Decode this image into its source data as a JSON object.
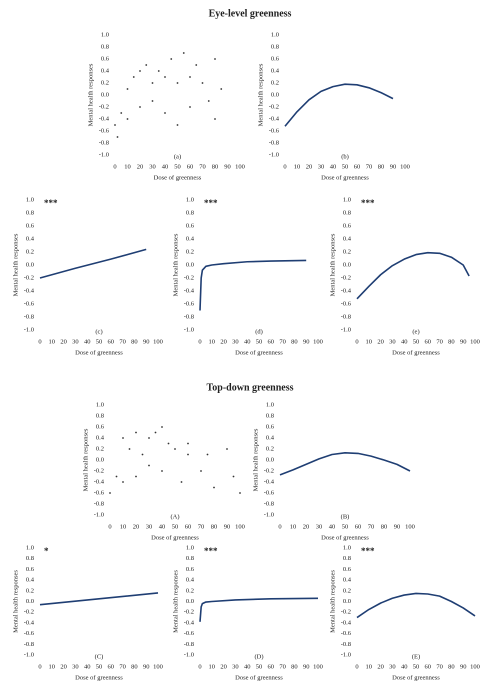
{
  "headings": [
    "Eye-level greenness",
    "Top-down greenness"
  ],
  "chart_data": [
    {
      "type": "scatter",
      "caption": "(a)",
      "significance": null,
      "xlabel": "Dose of greenness",
      "ylabel": "Mental health responses",
      "color": "#333333",
      "x": [
        0,
        2,
        5,
        10,
        10,
        15,
        20,
        20,
        25,
        30,
        30,
        35,
        40,
        40,
        45,
        50,
        50,
        55,
        60,
        60,
        65,
        70,
        75,
        80,
        80,
        85
      ],
      "values": [
        -0.5,
        -0.7,
        -0.3,
        0.1,
        -0.4,
        0.3,
        -0.2,
        0.4,
        0.5,
        0.2,
        -0.1,
        0.4,
        0.3,
        -0.3,
        0.6,
        0.2,
        -0.5,
        0.7,
        0.3,
        -0.2,
        0.5,
        0.2,
        -0.1,
        0.6,
        -0.4,
        0.1
      ],
      "xlim": [
        0,
        100
      ],
      "xticks": [
        0,
        10,
        20,
        30,
        40,
        50,
        60,
        70,
        80,
        90,
        100
      ],
      "ylim": [
        -1,
        1
      ],
      "yticks": [
        {
          "value": -1,
          "label": "-1.0"
        },
        {
          "value": -0.8,
          "label": "-0.8"
        },
        {
          "value": -0.6,
          "label": "-0.6"
        },
        {
          "value": -0.4,
          "label": "-0.4"
        },
        {
          "value": -0.2,
          "label": "-0.2"
        },
        {
          "value": 0,
          "label": "0.0"
        },
        {
          "value": 0.2,
          "label": "0.2"
        },
        {
          "value": 0.4,
          "label": "0.4"
        },
        {
          "value": 0.6,
          "label": "0.6"
        },
        {
          "value": 0.8,
          "label": "0.8"
        },
        {
          "value": 1,
          "label": "1.0"
        }
      ]
    },
    {
      "type": "line",
      "caption": "(b)",
      "significance": null,
      "xlabel": "Dose of greenness",
      "ylabel": "Mental health responses",
      "color": "#1f3e73",
      "x": [
        0,
        10,
        20,
        30,
        40,
        50,
        60,
        70,
        80,
        90
      ],
      "values": [
        -0.52,
        -0.28,
        -0.08,
        0.06,
        0.14,
        0.18,
        0.17,
        0.12,
        0.04,
        -0.06
      ],
      "xlim": [
        0,
        100
      ],
      "xticks": [
        0,
        10,
        20,
        30,
        40,
        50,
        60,
        70,
        80,
        90,
        100
      ],
      "ylim": [
        -1,
        1
      ],
      "yticks": [
        {
          "value": -1,
          "label": "-1.0"
        },
        {
          "value": -0.8,
          "label": "-0.8"
        },
        {
          "value": -0.6,
          "label": "-0.6"
        },
        {
          "value": -0.4,
          "label": "-0.4"
        },
        {
          "value": -0.2,
          "label": "-0.2"
        },
        {
          "value": 0,
          "label": "0.0"
        },
        {
          "value": 0.2,
          "label": "0.2"
        },
        {
          "value": 0.4,
          "label": "0.4"
        },
        {
          "value": 0.6,
          "label": "0.6"
        },
        {
          "value": 0.8,
          "label": "0.8"
        },
        {
          "value": 1,
          "label": "1.0"
        }
      ]
    },
    {
      "type": "line",
      "caption": "(c)",
      "significance": "***",
      "xlabel": "Dose of greenness",
      "ylabel": "Mental health responses",
      "color": "#1f3e73",
      "x": [
        0,
        30,
        60,
        90
      ],
      "values": [
        -0.2,
        -0.05,
        0.09,
        0.24
      ],
      "xlim": [
        0,
        100
      ],
      "xticks": [
        0,
        10,
        20,
        30,
        40,
        50,
        60,
        70,
        80,
        90,
        100
      ],
      "ylim": [
        -1,
        1
      ],
      "yticks": [
        {
          "value": -1,
          "label": "-1.0"
        },
        {
          "value": -0.8,
          "label": "-0.8"
        },
        {
          "value": -0.6,
          "label": "-0.6"
        },
        {
          "value": -0.4,
          "label": "-0.4"
        },
        {
          "value": -0.2,
          "label": "-0.2"
        },
        {
          "value": 0,
          "label": "0.0"
        },
        {
          "value": 0.2,
          "label": "0.2"
        },
        {
          "value": 0.4,
          "label": "0.4"
        },
        {
          "value": 0.6,
          "label": "0.6"
        },
        {
          "value": 0.8,
          "label": "0.8"
        },
        {
          "value": 1,
          "label": "1.0"
        }
      ]
    },
    {
      "type": "line",
      "caption": "(d)",
      "significance": "***",
      "xlabel": "Dose of greenness",
      "ylabel": "Mental health responses",
      "color": "#1f3e73",
      "x": [
        0,
        1,
        2,
        5,
        10,
        20,
        40,
        60,
        90
      ],
      "values": [
        -0.7,
        -0.2,
        -0.08,
        -0.02,
        0.0,
        0.02,
        0.05,
        0.06,
        0.07
      ],
      "xlim": [
        0,
        100
      ],
      "xticks": [
        0,
        10,
        20,
        30,
        40,
        50,
        60,
        70,
        80,
        90,
        100
      ],
      "ylim": [
        -1,
        1
      ],
      "yticks": [
        {
          "value": -1,
          "label": "-1.0"
        },
        {
          "value": -0.8,
          "label": "-0.8"
        },
        {
          "value": -0.6,
          "label": "-0.6"
        },
        {
          "value": -0.4,
          "label": "-0.4"
        },
        {
          "value": -0.2,
          "label": "-0.2"
        },
        {
          "value": 0,
          "label": "0.0"
        },
        {
          "value": 0.2,
          "label": "0.2"
        },
        {
          "value": 0.4,
          "label": "0.4"
        },
        {
          "value": 0.6,
          "label": "0.6"
        },
        {
          "value": 0.8,
          "label": "0.8"
        },
        {
          "value": 1,
          "label": "1.0"
        }
      ]
    },
    {
      "type": "line",
      "caption": "(e)",
      "significance": "***",
      "xlabel": "Dose of greenness",
      "ylabel": "Mental health responses",
      "color": "#1f3e73",
      "x": [
        0,
        10,
        20,
        30,
        40,
        50,
        60,
        70,
        80,
        90,
        95
      ],
      "values": [
        -0.52,
        -0.33,
        -0.15,
        -0.01,
        0.09,
        0.16,
        0.19,
        0.18,
        0.12,
        0.0,
        -0.17
      ],
      "xlim": [
        0,
        100
      ],
      "xticks": [
        0,
        10,
        20,
        30,
        40,
        50,
        60,
        70,
        80,
        90,
        100
      ],
      "ylim": [
        -1,
        1
      ],
      "yticks": [
        {
          "value": -1,
          "label": "-1.0"
        },
        {
          "value": -0.8,
          "label": "-0.8"
        },
        {
          "value": -0.6,
          "label": "-0.6"
        },
        {
          "value": -0.4,
          "label": "-0.4"
        },
        {
          "value": -0.2,
          "label": "-0.2"
        },
        {
          "value": 0,
          "label": "0.0"
        },
        {
          "value": 0.2,
          "label": "0.2"
        },
        {
          "value": 0.4,
          "label": "0.4"
        },
        {
          "value": 0.6,
          "label": "0.6"
        },
        {
          "value": 0.8,
          "label": "0.8"
        },
        {
          "value": 1,
          "label": "1.0"
        }
      ]
    },
    {
      "type": "scatter",
      "caption": "(A)",
      "significance": null,
      "xlabel": "Dose of greenness",
      "ylabel": "Mental health responses",
      "color": "#333333",
      "x": [
        0,
        5,
        10,
        10,
        15,
        20,
        20,
        25,
        30,
        30,
        35,
        40,
        40,
        45,
        50,
        55,
        60,
        60,
        70,
        75,
        80,
        90,
        95,
        100
      ],
      "values": [
        -0.6,
        -0.3,
        0.4,
        -0.4,
        0.2,
        0.5,
        -0.3,
        0.1,
        0.4,
        -0.1,
        0.5,
        0.6,
        -0.2,
        0.3,
        0.2,
        -0.4,
        0.3,
        0.1,
        -0.2,
        0.1,
        -0.5,
        0.2,
        -0.3,
        -0.6
      ],
      "xlim": [
        0,
        100
      ],
      "xticks": [
        0,
        10,
        20,
        30,
        40,
        50,
        60,
        70,
        80,
        90,
        100
      ],
      "ylim": [
        -1,
        1
      ],
      "yticks": [
        {
          "value": -1,
          "label": "-1.0"
        },
        {
          "value": -0.8,
          "label": "-0.8"
        },
        {
          "value": -0.6,
          "label": "-0.6"
        },
        {
          "value": -0.4,
          "label": "-0.4"
        },
        {
          "value": -0.2,
          "label": "-0.2"
        },
        {
          "value": 0,
          "label": "0.0"
        },
        {
          "value": 0.2,
          "label": "0.2"
        },
        {
          "value": 0.4,
          "label": "0.4"
        },
        {
          "value": 0.6,
          "label": "0.6"
        },
        {
          "value": 0.8,
          "label": "0.8"
        },
        {
          "value": 1,
          "label": "1.0"
        }
      ]
    },
    {
      "type": "line",
      "caption": "(B)",
      "significance": null,
      "xlabel": "Dose of greenness",
      "ylabel": "Mental health responses",
      "color": "#1f3e73",
      "x": [
        0,
        10,
        20,
        30,
        40,
        50,
        60,
        70,
        80,
        90,
        100
      ],
      "values": [
        -0.27,
        -0.18,
        -0.08,
        0.02,
        0.1,
        0.13,
        0.12,
        0.07,
        0.0,
        -0.08,
        -0.2
      ],
      "xlim": [
        0,
        100
      ],
      "xticks": [
        0,
        10,
        20,
        30,
        40,
        50,
        60,
        70,
        80,
        90,
        100
      ],
      "ylim": [
        -1,
        1
      ],
      "yticks": [
        {
          "value": -1,
          "label": "-1.0"
        },
        {
          "value": -0.8,
          "label": "-0.8"
        },
        {
          "value": -0.6,
          "label": "-0.6"
        },
        {
          "value": -0.4,
          "label": "-0.4"
        },
        {
          "value": -0.2,
          "label": "-0.2"
        },
        {
          "value": 0,
          "label": "0.0"
        },
        {
          "value": 0.2,
          "label": "0.2"
        },
        {
          "value": 0.4,
          "label": "0.4"
        },
        {
          "value": 0.6,
          "label": "0.6"
        },
        {
          "value": 0.8,
          "label": "0.8"
        },
        {
          "value": 1,
          "label": "1.0"
        }
      ]
    },
    {
      "type": "line",
      "caption": "(C)",
      "significance": "*",
      "xlabel": "Dose of greenness",
      "ylabel": "Mental health responses",
      "color": "#1f3e73",
      "x": [
        0,
        50,
        100
      ],
      "values": [
        -0.06,
        0.05,
        0.16
      ],
      "xlim": [
        0,
        100
      ],
      "xticks": [
        0,
        10,
        20,
        30,
        40,
        50,
        60,
        70,
        80,
        90,
        100
      ],
      "ylim": [
        -1,
        1
      ],
      "yticks": [
        {
          "value": -1,
          "label": "-1.0"
        },
        {
          "value": -0.8,
          "label": "-0.8"
        },
        {
          "value": -0.6,
          "label": "-0.6"
        },
        {
          "value": -0.4,
          "label": "-0.4"
        },
        {
          "value": -0.2,
          "label": "-0.2"
        },
        {
          "value": 0,
          "label": "0.0"
        },
        {
          "value": 0.2,
          "label": "0.2"
        },
        {
          "value": 0.4,
          "label": "0.4"
        },
        {
          "value": 0.6,
          "label": "0.6"
        },
        {
          "value": 0.8,
          "label": "0.8"
        },
        {
          "value": 1,
          "label": "1.0"
        }
      ]
    },
    {
      "type": "line",
      "caption": "(D)",
      "significance": "***",
      "xlabel": "Dose of greenness",
      "ylabel": "Mental health responses",
      "color": "#1f3e73",
      "x": [
        0,
        1,
        2,
        5,
        10,
        30,
        60,
        100
      ],
      "values": [
        -0.38,
        -0.1,
        -0.04,
        -0.01,
        0.0,
        0.03,
        0.05,
        0.06
      ],
      "xlim": [
        0,
        100
      ],
      "xticks": [
        0,
        10,
        20,
        30,
        40,
        50,
        60,
        70,
        80,
        90,
        100
      ],
      "ylim": [
        -1,
        1
      ],
      "yticks": [
        {
          "value": -1,
          "label": "-1.0"
        },
        {
          "value": -0.8,
          "label": "-0.8"
        },
        {
          "value": -0.6,
          "label": "-0.6"
        },
        {
          "value": -0.4,
          "label": "-0.4"
        },
        {
          "value": -0.2,
          "label": "-0.2"
        },
        {
          "value": 0,
          "label": "0.0"
        },
        {
          "value": 0.2,
          "label": "0.2"
        },
        {
          "value": 0.4,
          "label": "0.4"
        },
        {
          "value": 0.6,
          "label": "0.6"
        },
        {
          "value": 0.8,
          "label": "0.8"
        },
        {
          "value": 1,
          "label": "1.0"
        }
      ]
    },
    {
      "type": "line",
      "caption": "(E)",
      "significance": "***",
      "xlabel": "Dose of greenness",
      "ylabel": "Mental health responses",
      "color": "#1f3e73",
      "x": [
        0,
        10,
        20,
        30,
        40,
        50,
        60,
        70,
        80,
        90,
        100
      ],
      "values": [
        -0.3,
        -0.15,
        -0.03,
        0.06,
        0.12,
        0.15,
        0.14,
        0.1,
        0.0,
        -0.12,
        -0.27
      ],
      "xlim": [
        0,
        100
      ],
      "xticks": [
        0,
        10,
        20,
        30,
        40,
        50,
        60,
        70,
        80,
        90,
        100
      ],
      "ylim": [
        -1,
        1
      ],
      "yticks": [
        {
          "value": -1,
          "label": "-1.0"
        },
        {
          "value": -0.8,
          "label": "-0.8"
        },
        {
          "value": -0.6,
          "label": "-0.6"
        },
        {
          "value": -0.4,
          "label": "-0.4"
        },
        {
          "value": -0.2,
          "label": "-0.2"
        },
        {
          "value": 0,
          "label": "0.0"
        },
        {
          "value": 0.2,
          "label": "0.2"
        },
        {
          "value": 0.4,
          "label": "0.4"
        },
        {
          "value": 0.6,
          "label": "0.6"
        },
        {
          "value": 0.8,
          "label": "0.8"
        },
        {
          "value": 1,
          "label": "1.0"
        }
      ]
    }
  ]
}
